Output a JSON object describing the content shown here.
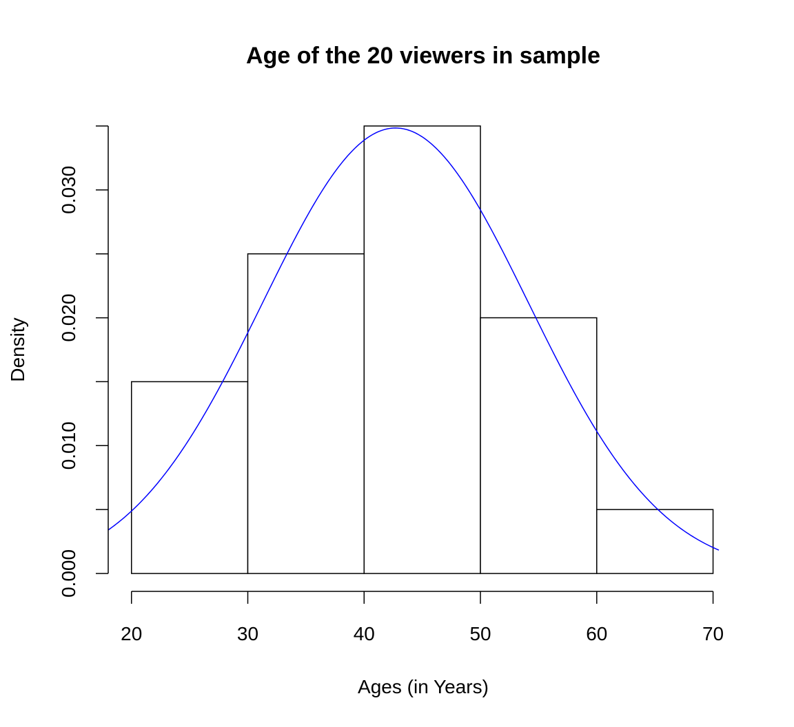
{
  "chart_data": {
    "type": "bar",
    "title": "Age of the 20 viewers in sample",
    "xlabel": "Ages (in Years)",
    "ylabel": "Density",
    "bins": [
      {
        "start": 20,
        "end": 30,
        "density": 0.015
      },
      {
        "start": 30,
        "end": 40,
        "density": 0.025
      },
      {
        "start": 40,
        "end": 50,
        "density": 0.035
      },
      {
        "start": 50,
        "end": 60,
        "density": 0.02
      },
      {
        "start": 60,
        "end": 70,
        "density": 0.005
      }
    ],
    "x_ticks": [
      20,
      30,
      40,
      50,
      60,
      70
    ],
    "x_tick_labels": [
      "20",
      "30",
      "40",
      "50",
      "60",
      "70"
    ],
    "y_ticks": [
      0,
      0.005,
      0.01,
      0.015,
      0.02,
      0.025,
      0.03,
      0.035
    ],
    "y_tick_labels": [
      "0.000",
      "",
      "0.010",
      "",
      "0.020",
      "",
      "0.030",
      ""
    ],
    "xlim": [
      18,
      70.5
    ],
    "ylim": [
      0,
      0.035
    ],
    "density_curve": {
      "color": "#0000ff",
      "distribution": "normal",
      "mean": 42.7,
      "sd": 11.45
    },
    "grid": false,
    "legend": "none"
  }
}
